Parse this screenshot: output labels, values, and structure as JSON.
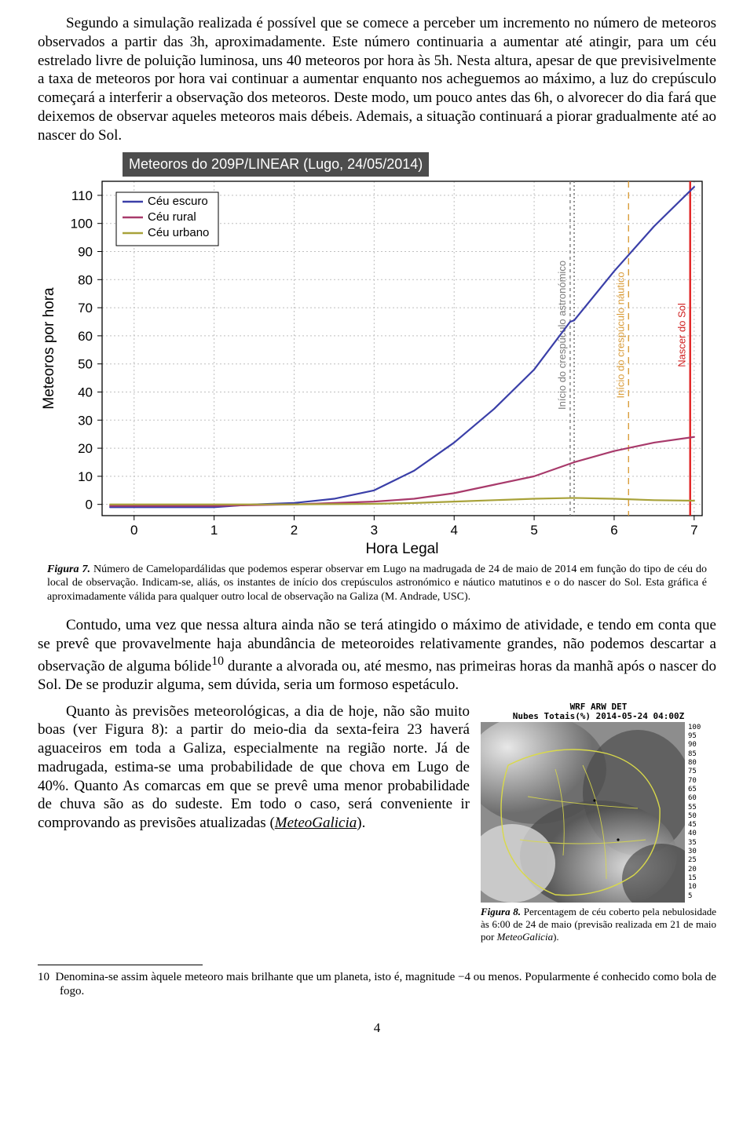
{
  "paragraphs": {
    "p1": "Segundo a simulação realizada é possível que se comece a perceber um incremento no número de meteoros observados a partir das 3h, aproximadamente. Este número continuaria a aumentar até atingir, para um céu estrelado livre de poluição luminosa, uns 40 meteoros por hora às 5h. Nesta altura, apesar de que previsivelmente a taxa de meteoros por hora vai continuar a aumentar enquanto nos acheguemos ao máximo, a luz do crepúsculo começará a interferir a observação dos meteoros. Deste modo, um pouco antes das 6h, o alvorecer do dia fará que deixemos de observar aqueles meteoros mais débeis. Ademais, a situação continuará a piorar gradualmente até ao nascer do Sol.",
    "p2": "Contudo, uma vez que nessa altura ainda não se terá atingido o máximo de atividade, e tendo em conta que se prevê que provavelmente haja abundância de meteoroides relativamente grandes, não podemos descartar a observação de alguma bólide",
    "p2b": " durante a alvorada ou, até mesmo, nas primeiras horas da manhã após o nascer do Sol. De se produzir alguma, sem dúvida, seria um formoso espetáculo.",
    "p3a": "Quanto às previsões meteorológicas, a dia de hoje, não são muito boas (ver Figura 8): a partir do meio-dia da sexta-feira 23 haverá aguaceiros em toda a Galiza, especialmente na região norte. Já de madrugada, estima-se uma probabilidade de que chova em Lugo de 40%. Quanto  As comarcas em que se prevê uma menor probabilidade de chuva são as do sudeste. Em todo o caso, será conveniente ir comprovando as previsões atualizadas (",
    "link": "MeteoGalicia",
    "p3b": ")."
  },
  "chart": {
    "title": "Meteoros do 209P/LINEAR (Lugo, 24/05/2014)",
    "ylabel": "Meteoros por hora",
    "xlabel": "Hora Legal",
    "legend": [
      "Céu escuro",
      "Céu rural",
      "Céu urbano"
    ],
    "legend_colors": [
      "#3a3fa8",
      "#a83a6b",
      "#a8a23a"
    ],
    "xlim": [
      -0.4,
      7.1
    ],
    "ylim": [
      -4,
      115
    ],
    "xticks": [
      0,
      1,
      2,
      3,
      4,
      5,
      6,
      7
    ],
    "yticks": [
      0,
      10,
      20,
      30,
      40,
      50,
      60,
      70,
      80,
      90,
      100,
      110
    ],
    "series": [
      {
        "name": "dark",
        "color": "#3a3fa8",
        "width": 2.2,
        "pts": [
          [
            -0.3,
            -1
          ],
          [
            0,
            -1
          ],
          [
            1,
            -1
          ],
          [
            1.5,
            0
          ],
          [
            2,
            0.5
          ],
          [
            2.5,
            2
          ],
          [
            3,
            5
          ],
          [
            3.5,
            12
          ],
          [
            4,
            22
          ],
          [
            4.5,
            34
          ],
          [
            5,
            48
          ],
          [
            5.45,
            65
          ],
          [
            5.5,
            65.5
          ],
          [
            6,
            83
          ],
          [
            6.5,
            99
          ],
          [
            7,
            113
          ]
        ]
      },
      {
        "name": "rural",
        "color": "#a83a6b",
        "width": 2.2,
        "pts": [
          [
            -0.3,
            -0.5
          ],
          [
            0,
            -0.5
          ],
          [
            1,
            -0.5
          ],
          [
            2,
            0
          ],
          [
            2.5,
            0.5
          ],
          [
            3,
            1
          ],
          [
            3.5,
            2
          ],
          [
            4,
            4
          ],
          [
            4.5,
            7
          ],
          [
            5,
            10
          ],
          [
            5.5,
            15
          ],
          [
            6,
            19
          ],
          [
            6.5,
            22
          ],
          [
            7,
            24
          ]
        ]
      },
      {
        "name": "urban",
        "color": "#a8a23a",
        "width": 2.2,
        "pts": [
          [
            -0.3,
            0
          ],
          [
            0,
            0
          ],
          [
            1,
            0
          ],
          [
            2,
            0
          ],
          [
            3,
            0.2
          ],
          [
            3.5,
            0.5
          ],
          [
            4,
            1
          ],
          [
            4.5,
            1.5
          ],
          [
            5,
            2
          ],
          [
            5.5,
            2.3
          ],
          [
            6,
            2
          ],
          [
            6.5,
            1.5
          ],
          [
            7,
            1.3
          ]
        ]
      }
    ],
    "vlines": [
      {
        "x": 5.45,
        "color": "#808080",
        "dash": "4,4",
        "label": "Início do crespúculo astronómico",
        "labelcolor": "#7a7a7a"
      },
      {
        "x": 5.5,
        "color": "#6b6b6b",
        "dash": "2,3",
        "label": "",
        "labelcolor": "#6b6b6b"
      },
      {
        "x": 6.18,
        "color": "#d99c3a",
        "dash": "8,6",
        "label": "Início do crespúculo náutico",
        "labelcolor": "#d99c3a"
      },
      {
        "x": 6.95,
        "color": "#e02020",
        "dash": "",
        "label": "Nascer do Sol",
        "labelcolor": "#d02020"
      }
    ],
    "grid_color": "#bfbfbf",
    "axis_color": "#000000",
    "bg": "#ffffff",
    "tick_fontsize": 17,
    "label_fontsize": 19
  },
  "fig7": {
    "tag": "Figura 7.",
    "text": " Número de Camelopardálidas que podemos esperar observar em Lugo na madrugada de 24 de maio de 2014 em função do tipo de céu do local de observação. Indicam-se, aliás, os instantes de início dos crepúsculos astronómico e náutico matutinos e o do nascer do Sol. Esta gráfica é aproximadamente válida para qualquer outro local de observação na Galiza (M. Andrade, USC)."
  },
  "wx": {
    "line1": "WRF ARW DET",
    "line2": "Nubes Totais(%)  2014-05-24 04:00Z",
    "bar_vals": [
      100,
      95,
      90,
      85,
      80,
      75,
      70,
      65,
      60,
      55,
      50,
      45,
      40,
      35,
      30,
      25,
      20,
      15,
      10,
      5
    ]
  },
  "fig8": {
    "tag": "Figura 8.",
    "text": " Percentagem de céu coberto pela nebulosidade às 6:00 de 24 de maio (previsão realizada em 21 de maio por MeteoGalicia).",
    "italic": "MeteoGalicia"
  },
  "footnote": {
    "num": "10",
    "sup": "10",
    "text": "Denomina-se assim àquele meteoro mais brilhante que um planeta, isto é, magnitude −4 ou menos. Popularmente é conhecido como bola de fogo."
  },
  "pagenum": "4"
}
